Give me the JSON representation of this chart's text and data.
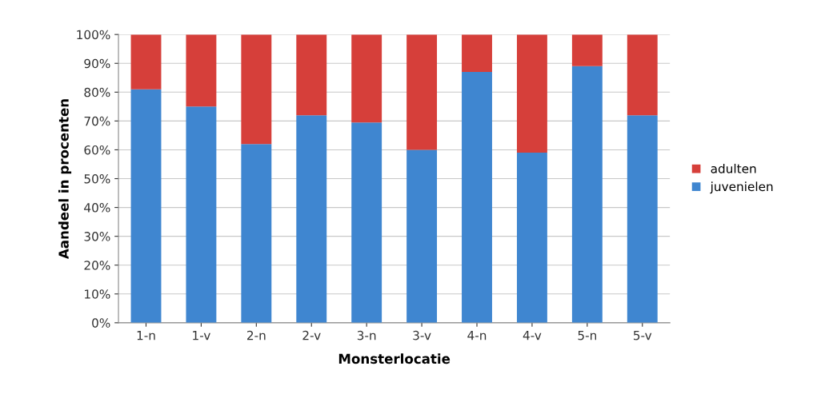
{
  "chart_data": {
    "type": "bar",
    "stacked": true,
    "xlabel": "Monsterlocatie",
    "ylabel": "Aandeel in procenten",
    "categories": [
      "1-n",
      "1-v",
      "2-n",
      "2-v",
      "3-n",
      "3-v",
      "4-n",
      "4-v",
      "5-n",
      "5-v"
    ],
    "series": [
      {
        "name": "juvenielen",
        "color": "#3f86d0",
        "values": [
          81,
          75,
          62,
          72,
          69.5,
          60,
          87,
          59,
          89,
          72
        ]
      },
      {
        "name": "adulten",
        "color": "#d63f3a",
        "values": [
          19,
          25,
          38,
          28,
          30.5,
          40,
          13,
          41,
          11,
          28
        ]
      }
    ],
    "ylim": [
      0,
      100
    ],
    "yticks": [
      {
        "value": 0,
        "label": "0%"
      },
      {
        "value": 10,
        "label": "10%"
      },
      {
        "value": 20,
        "label": "20%"
      },
      {
        "value": 30,
        "label": "30%"
      },
      {
        "value": 40,
        "label": "40%"
      },
      {
        "value": 50,
        "label": "50%"
      },
      {
        "value": 60,
        "label": "60%"
      },
      {
        "value": 70,
        "label": "70%"
      },
      {
        "value": 80,
        "label": "80%"
      },
      {
        "value": 90,
        "label": "90%"
      },
      {
        "value": 100,
        "label": "100%"
      }
    ],
    "grid": "y",
    "legend": "right"
  }
}
